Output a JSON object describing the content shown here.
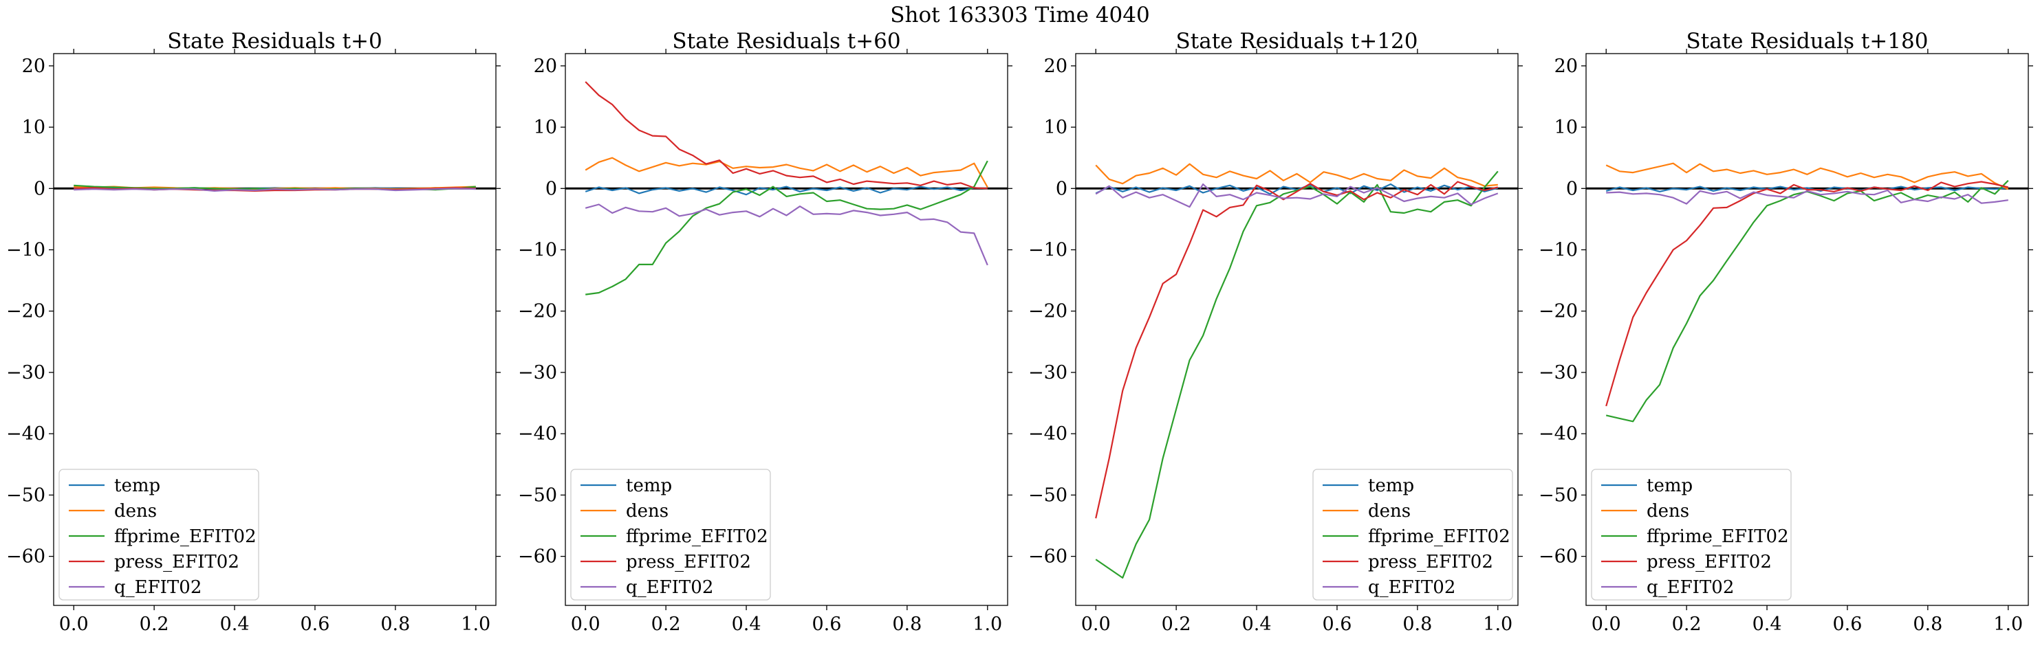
{
  "suptitle": "Shot 163303   Time 4040",
  "colors": {
    "temp": "#1f77b4",
    "dens": "#ff7f0e",
    "ffprime": "#2ca02c",
    "press": "#d62728",
    "q": "#9467bd",
    "zero_line": "#000000"
  },
  "chart_data": [
    {
      "type": "line",
      "title": "State Residuals t+0",
      "xlim": [
        -0.05,
        1.05
      ],
      "ylim": [
        -68,
        22
      ],
      "xticks": [
        "0.0",
        "0.2",
        "0.4",
        "0.6",
        "0.8",
        "1.0"
      ],
      "yticks": [
        "20",
        "10",
        "0",
        "−10",
        "−20",
        "−30",
        "−40",
        "−50",
        "−60"
      ],
      "legend_location": "lower-left",
      "x": [
        0.0,
        0.05,
        0.1,
        0.15,
        0.2,
        0.25,
        0.3,
        0.35,
        0.4,
        0.45,
        0.5,
        0.55,
        0.6,
        0.65,
        0.7,
        0.75,
        0.8,
        0.85,
        0.9,
        0.95,
        1.0
      ],
      "series": [
        {
          "name": "temp",
          "values": [
            0.1,
            0.0,
            0.1,
            0.0,
            -0.1,
            0.0,
            0.1,
            0.0,
            0.0,
            0.0,
            0.1,
            0.0,
            -0.1,
            0.0,
            0.0,
            0.1,
            0.0,
            0.0,
            0.1,
            0.0,
            0.0
          ]
        },
        {
          "name": "dens",
          "values": [
            0.3,
            0.2,
            0.3,
            0.1,
            0.2,
            0.1,
            0.0,
            0.1,
            0.0,
            -0.1,
            0.0,
            0.1,
            0.0,
            0.1,
            0.0,
            0.0,
            -0.1,
            0.0,
            0.1,
            0.2,
            0.3
          ]
        },
        {
          "name": "ffprime_EFIT02",
          "values": [
            0.5,
            0.3,
            0.2,
            0.1,
            0.0,
            0.0,
            0.1,
            0.0,
            -0.1,
            0.0,
            -0.1,
            0.0,
            -0.1,
            -0.1,
            0.0,
            -0.1,
            -0.2,
            -0.1,
            -0.2,
            0.0,
            0.3
          ]
        },
        {
          "name": "press_EFIT02",
          "values": [
            0.0,
            0.1,
            -0.1,
            0.0,
            -0.2,
            -0.1,
            -0.2,
            -0.3,
            -0.3,
            -0.4,
            -0.3,
            -0.3,
            -0.2,
            -0.2,
            -0.1,
            -0.1,
            -0.2,
            -0.1,
            0.0,
            0.1,
            0.0
          ]
        },
        {
          "name": "q_EFIT02",
          "values": [
            -0.2,
            -0.1,
            -0.2,
            -0.1,
            -0.2,
            -0.1,
            -0.1,
            -0.4,
            -0.2,
            -0.3,
            -0.1,
            -0.2,
            -0.1,
            -0.2,
            -0.1,
            -0.1,
            -0.3,
            -0.2,
            -0.1,
            0.0,
            -0.1
          ]
        }
      ]
    },
    {
      "type": "line",
      "title": "State Residuals t+60",
      "xlim": [
        -0.05,
        1.05
      ],
      "ylim": [
        -68,
        22
      ],
      "xticks": [
        "0.0",
        "0.2",
        "0.4",
        "0.6",
        "0.8",
        "1.0"
      ],
      "yticks": [
        "20",
        "10",
        "0",
        "−10",
        "−20",
        "−30",
        "−40",
        "−50",
        "−60"
      ],
      "legend_location": "lower-left",
      "x": [
        0.0,
        0.0333,
        0.0667,
        0.1,
        0.1333,
        0.1667,
        0.2,
        0.2333,
        0.2667,
        0.3,
        0.3333,
        0.3667,
        0.4,
        0.4333,
        0.4667,
        0.5,
        0.5333,
        0.5667,
        0.6,
        0.6333,
        0.6667,
        0.7,
        0.7333,
        0.7667,
        0.8,
        0.8333,
        0.8667,
        0.9,
        0.9333,
        0.9667,
        1.0
      ],
      "series": [
        {
          "name": "temp",
          "values": [
            -0.5,
            0.2,
            -0.3,
            0.1,
            -0.8,
            -0.2,
            0.1,
            -0.4,
            0.0,
            -0.6,
            0.2,
            -0.3,
            -1.0,
            0.1,
            -0.2,
            0.3,
            -0.5,
            0.0,
            -0.3,
            0.2,
            -0.4,
            0.1,
            -0.7,
            0.0,
            -0.2,
            0.3,
            -0.1,
            0.2,
            -0.3,
            0.1,
            0.0
          ]
        },
        {
          "name": "dens",
          "values": [
            3.0,
            4.3,
            5.0,
            3.8,
            2.8,
            3.5,
            4.2,
            3.7,
            4.1,
            3.9,
            4.4,
            3.3,
            3.6,
            3.4,
            3.5,
            3.9,
            3.3,
            2.9,
            3.9,
            2.8,
            3.8,
            2.7,
            3.6,
            2.5,
            3.4,
            2.1,
            2.6,
            2.8,
            3.0,
            4.1,
            0.2
          ]
        },
        {
          "name": "ffprime_EFIT02",
          "values": [
            -17.3,
            -17.0,
            -16.0,
            -14.8,
            -12.4,
            -12.4,
            -8.9,
            -7.0,
            -4.5,
            -3.2,
            -2.5,
            -0.6,
            -0.1,
            -1.1,
            0.3,
            -1.3,
            -0.9,
            -0.7,
            -2.1,
            -1.9,
            -2.6,
            -3.3,
            -3.4,
            -3.3,
            -2.7,
            -3.4,
            -2.6,
            -1.8,
            -1.0,
            0.3,
            4.5
          ]
        },
        {
          "name": "press_EFIT02",
          "values": [
            17.4,
            15.2,
            13.7,
            11.3,
            9.5,
            8.6,
            8.5,
            6.4,
            5.4,
            4.0,
            4.6,
            2.5,
            3.2,
            2.4,
            2.9,
            2.1,
            1.8,
            2.0,
            1.0,
            1.5,
            0.7,
            1.2,
            1.0,
            0.8,
            0.9,
            0.5,
            1.2,
            0.6,
            0.9,
            0.1,
            0.0
          ]
        },
        {
          "name": "q_EFIT02",
          "values": [
            -3.2,
            -2.6,
            -4.0,
            -3.1,
            -3.7,
            -3.8,
            -3.2,
            -4.5,
            -4.1,
            -3.4,
            -4.3,
            -3.9,
            -3.7,
            -4.6,
            -3.3,
            -4.4,
            -2.9,
            -4.2,
            -4.1,
            -4.2,
            -3.6,
            -3.9,
            -4.4,
            -4.2,
            -3.9,
            -5.1,
            -5.0,
            -5.5,
            -7.1,
            -7.3,
            -12.5
          ]
        }
      ]
    },
    {
      "type": "line",
      "title": "State Residuals t+120",
      "xlim": [
        -0.05,
        1.05
      ],
      "ylim": [
        -68,
        22
      ],
      "xticks": [
        "0.0",
        "0.2",
        "0.4",
        "0.6",
        "0.8",
        "1.0"
      ],
      "yticks": [
        "20",
        "10",
        "0",
        "−10",
        "−20",
        "−30",
        "−40",
        "−50",
        "−60"
      ],
      "legend_location": "lower-right",
      "x": [
        0.0,
        0.0333,
        0.0667,
        0.1,
        0.1333,
        0.1667,
        0.2,
        0.2333,
        0.2667,
        0.3,
        0.3333,
        0.3667,
        0.4,
        0.4333,
        0.4667,
        0.5,
        0.5333,
        0.5667,
        0.6,
        0.6333,
        0.6667,
        0.7,
        0.7333,
        0.7667,
        0.8,
        0.8333,
        0.8667,
        0.9,
        0.9333,
        0.9667,
        1.0
      ],
      "series": [
        {
          "name": "temp",
          "values": [
            -0.8,
            0.3,
            -0.5,
            0.2,
            -0.6,
            0.1,
            -0.3,
            0.4,
            -0.7,
            0.0,
            0.5,
            -0.4,
            0.2,
            -0.9,
            0.3,
            -0.2,
            0.6,
            -0.5,
            0.1,
            -0.8,
            0.4,
            -0.3,
            0.7,
            -0.6,
            0.2,
            -0.4,
            0.5,
            -0.2,
            0.3,
            -0.5,
            0.1
          ]
        },
        {
          "name": "dens",
          "values": [
            3.8,
            1.5,
            0.8,
            2.1,
            2.5,
            3.3,
            2.2,
            4.0,
            2.3,
            1.8,
            2.8,
            2.1,
            1.6,
            2.9,
            1.3,
            2.4,
            1.0,
            2.7,
            2.2,
            1.5,
            2.4,
            1.6,
            1.3,
            3.0,
            2.0,
            1.7,
            3.3,
            1.8,
            1.3,
            0.4,
            0.6
          ]
        },
        {
          "name": "ffprime_EFIT02",
          "values": [
            -60.5,
            -62.0,
            -63.5,
            -58.0,
            -54.0,
            -44.0,
            -36.0,
            -28.0,
            -24.0,
            -18.0,
            -13.0,
            -7.0,
            -2.8,
            -2.3,
            -0.9,
            -0.3,
            0.3,
            -1.0,
            -2.5,
            -0.6,
            -2.2,
            0.6,
            -3.8,
            -4.0,
            -3.4,
            -3.8,
            -2.2,
            -1.9,
            -2.8,
            0.2,
            2.8
          ]
        },
        {
          "name": "press_EFIT02",
          "values": [
            -53.8,
            -44.0,
            -33.0,
            -26.0,
            -21.0,
            -15.5,
            -14.0,
            -9.0,
            -3.5,
            -4.6,
            -3.1,
            -2.7,
            0.5,
            -0.4,
            -1.8,
            -0.5,
            0.8,
            -0.5,
            -1.1,
            -0.4,
            -1.8,
            -0.7,
            -1.5,
            -0.2,
            -1.0,
            0.6,
            -0.9,
            1.1,
            0.3,
            -0.3,
            0.2
          ]
        },
        {
          "name": "q_EFIT02",
          "values": [
            -0.9,
            0.4,
            -1.5,
            -0.6,
            -1.5,
            -1.0,
            -2.0,
            -3.0,
            0.7,
            -1.3,
            -1.0,
            -1.8,
            -0.7,
            -1.1,
            -1.6,
            -1.5,
            -1.7,
            -0.9,
            -1.3,
            0.3,
            -0.7,
            0.1,
            -1.0,
            -2.1,
            -1.6,
            -1.3,
            -1.5,
            -0.8,
            -2.6,
            -1.6,
            -0.8
          ]
        }
      ]
    },
    {
      "type": "line",
      "title": "State Residuals t+180",
      "xlim": [
        -0.05,
        1.05
      ],
      "ylim": [
        -68,
        22
      ],
      "xticks": [
        "0.0",
        "0.2",
        "0.4",
        "0.6",
        "0.8",
        "1.0"
      ],
      "yticks": [
        "20",
        "10",
        "0",
        "−10",
        "−20",
        "−30",
        "−40",
        "−50",
        "−60"
      ],
      "legend_location": "lower-left",
      "x": [
        0.0,
        0.0333,
        0.0667,
        0.1,
        0.1333,
        0.1667,
        0.2,
        0.2333,
        0.2667,
        0.3,
        0.3333,
        0.3667,
        0.4,
        0.4333,
        0.4667,
        0.5,
        0.5333,
        0.5667,
        0.6,
        0.6333,
        0.6667,
        0.7,
        0.7333,
        0.7667,
        0.8,
        0.8333,
        0.8667,
        0.9,
        0.9333,
        0.9667,
        1.0
      ],
      "series": [
        {
          "name": "temp",
          "values": [
            -0.4,
            0.2,
            -0.3,
            0.1,
            -0.5,
            0.0,
            -0.2,
            0.3,
            -0.4,
            0.1,
            -0.3,
            0.2,
            -0.1,
            0.3,
            -0.2,
            0.1,
            -0.4,
            0.2,
            0.0,
            -0.3,
            0.2,
            -0.1,
            0.3,
            -0.2,
            0.1,
            0.2,
            -0.3,
            0.2,
            0.0,
            -0.1,
            0.1
          ]
        },
        {
          "name": "dens",
          "values": [
            3.8,
            2.8,
            2.6,
            3.1,
            3.6,
            4.1,
            2.6,
            4.0,
            2.8,
            3.1,
            2.5,
            2.9,
            2.3,
            2.6,
            3.1,
            2.3,
            3.3,
            2.7,
            1.9,
            2.5,
            1.8,
            2.3,
            1.9,
            1.0,
            1.9,
            2.4,
            2.7,
            2.0,
            2.4,
            0.9,
            -0.1
          ]
        },
        {
          "name": "ffprime_EFIT02",
          "values": [
            -37.0,
            -37.5,
            -38.0,
            -34.5,
            -32.0,
            -26.0,
            -22.0,
            -17.5,
            -15.0,
            -11.8,
            -8.7,
            -5.5,
            -2.8,
            -2.0,
            -1.0,
            -0.5,
            -1.2,
            -2.0,
            -0.8,
            -0.4,
            -2.0,
            -1.3,
            -0.7,
            -1.8,
            -1.1,
            -1.5,
            -0.6,
            -2.2,
            0.1,
            -0.9,
            1.3
          ]
        },
        {
          "name": "press_EFIT02",
          "values": [
            -35.5,
            -28.0,
            -21.0,
            -17.0,
            -13.5,
            -10.0,
            -8.5,
            -6.0,
            -3.2,
            -3.1,
            -2.0,
            -0.8,
            -0.1,
            -0.8,
            0.6,
            -0.2,
            -0.2,
            -0.5,
            0.1,
            -0.4,
            0.2,
            -0.1,
            -0.3,
            0.4,
            -0.3,
            1.0,
            0.3,
            0.8,
            1.1,
            0.7,
            0.2
          ]
        },
        {
          "name": "q_EFIT02",
          "values": [
            -0.7,
            -0.6,
            -0.9,
            -0.8,
            -1.0,
            -1.5,
            -2.5,
            -0.4,
            -0.9,
            -0.5,
            -1.6,
            -0.6,
            -1.1,
            -1.3,
            -1.5,
            -0.4,
            -1.0,
            -0.8,
            -0.5,
            -0.9,
            -1.0,
            -0.3,
            -2.3,
            -1.8,
            -2.1,
            -1.4,
            -1.7,
            -1.0,
            -2.4,
            -2.2,
            -1.9
          ]
        }
      ]
    }
  ]
}
